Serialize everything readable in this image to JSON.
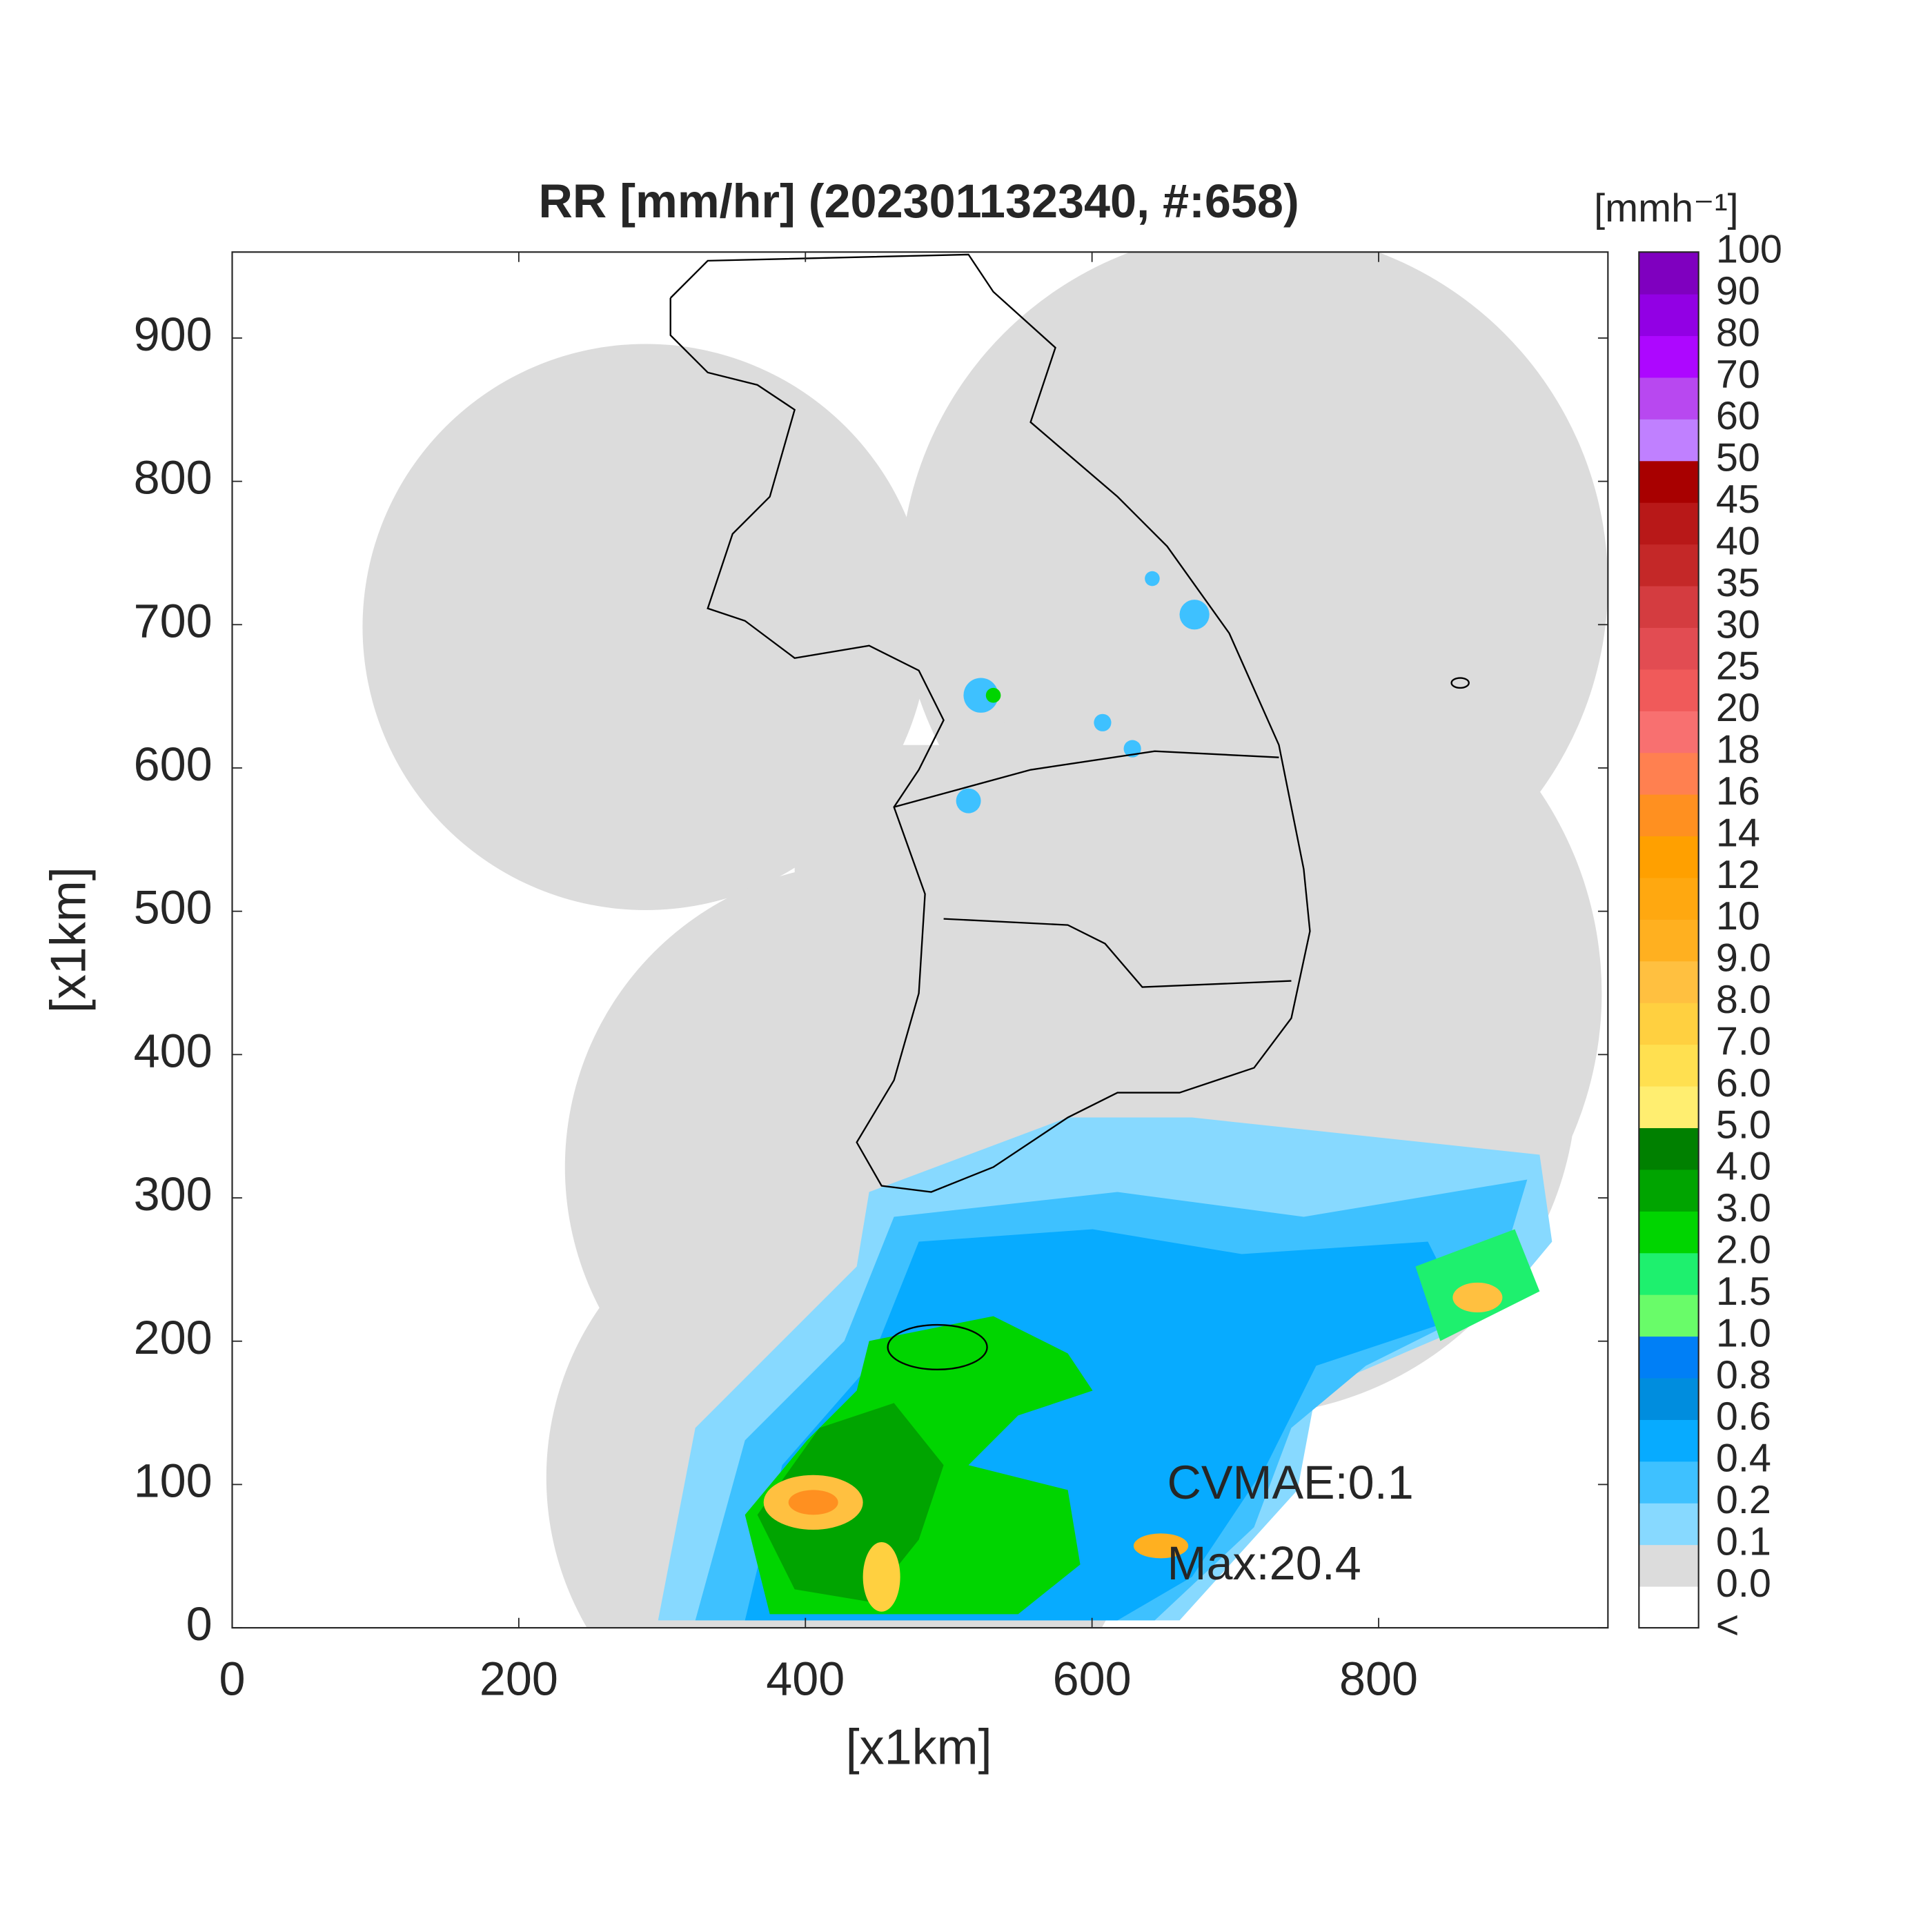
{
  "title": "RR [mm/hr] (202301132340, #:658)",
  "x_axis": {
    "label": "[x1km]",
    "lim": [
      0,
      960
    ],
    "ticks": [
      0,
      200,
      400,
      600,
      800
    ]
  },
  "y_axis": {
    "label": "[x1km]",
    "lim": [
      0,
      960
    ],
    "ticks": [
      0,
      100,
      200,
      300,
      400,
      500,
      600,
      700,
      800,
      900
    ]
  },
  "colorbar": {
    "unit": "[mmh⁻¹]",
    "levels": [
      "<",
      {
        "value": 0,
        "label": "0.0"
      },
      0.1,
      0.2,
      0.4,
      0.6,
      0.8,
      {
        "value": 1,
        "label": "1.0"
      },
      1.5,
      {
        "value": 2,
        "label": "2.0"
      },
      {
        "value": 3,
        "label": "3.0"
      },
      {
        "value": 4,
        "label": "4.0"
      },
      {
        "value": 5,
        "label": "5.0"
      },
      {
        "value": 6,
        "label": "6.0"
      },
      {
        "value": 7,
        "label": "7.0"
      },
      {
        "value": 8,
        "label": "8.0"
      },
      {
        "value": 9,
        "label": "9.0"
      },
      10,
      12,
      14,
      16,
      18,
      20,
      25,
      30,
      35,
      40,
      45,
      50,
      60,
      70,
      80,
      90,
      100
    ],
    "colors": [
      "#ffffff",
      "#dcdcdc",
      "#87d9ff",
      "#3ec1ff",
      "#07abff",
      "#008dde",
      "#007ff6",
      "#69fc69",
      "#1ef06e",
      "#00d500",
      "#00a400",
      "#008000",
      "#ffee70",
      "#ffe050",
      "#ffd040",
      "#ffc040",
      "#ffb020",
      "#ffa810",
      "#ffa000",
      "#ff9020",
      "#ff8050",
      "#f87070",
      "#f05a5a",
      "#e24c52",
      "#d43c40",
      "#c42828",
      "#b81818",
      "#a80000",
      "#c080ff",
      "#b848f0",
      "#ad07ff",
      "#9200e4",
      "#7f00bf",
      "#333333"
    ]
  },
  "annotations": [
    "CVMAE:0.1",
    "Max:20.4"
  ]
}
